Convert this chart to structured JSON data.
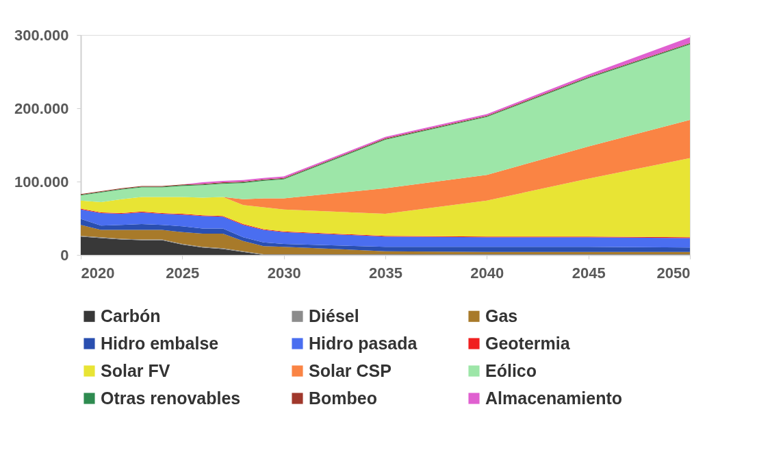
{
  "chart_data": {
    "type": "area",
    "stacked": true,
    "x": [
      2020,
      2021,
      2022,
      2023,
      2024,
      2025,
      2026,
      2027,
      2028,
      2029,
      2030,
      2035,
      2040,
      2045,
      2050
    ],
    "xlim": [
      2020,
      2050
    ],
    "xticks": [
      2020,
      2025,
      2030,
      2035,
      2040,
      2045,
      2050
    ],
    "ylim": [
      0,
      300000
    ],
    "yticks": [
      {
        "value": 0,
        "label": "0"
      },
      {
        "value": 100000,
        "label": "100.000"
      },
      {
        "value": 200000,
        "label": "200.000"
      },
      {
        "value": 300000,
        "label": "300.000"
      }
    ],
    "grid": false,
    "legend": "bottom",
    "series": [
      {
        "name": "Carbón",
        "color": "#383838",
        "values": [
          25000,
          23000,
          21000,
          20000,
          20000,
          14000,
          10000,
          8000,
          4000,
          0,
          0,
          0,
          0,
          0,
          0
        ]
      },
      {
        "name": "Diésel",
        "color": "#8c8c8c",
        "values": [
          1000,
          1000,
          1000,
          1000,
          1000,
          1000,
          1000,
          1000,
          1000,
          1000,
          1000,
          1000,
          1000,
          1000,
          1000
        ]
      },
      {
        "name": "Gas",
        "color": "#a87a2a",
        "values": [
          15000,
          10000,
          12000,
          13000,
          13000,
          16000,
          18000,
          20000,
          14000,
          11000,
          10000,
          4000,
          3000,
          3000,
          3000
        ]
      },
      {
        "name": "Hidro embalse",
        "color": "#2a4fb0",
        "values": [
          8000,
          6000,
          7000,
          8000,
          7000,
          8000,
          7000,
          7000,
          5000,
          5000,
          4000,
          6000,
          7000,
          7000,
          6000
        ]
      },
      {
        "name": "Hidro pasada",
        "color": "#4a6ef0",
        "values": [
          13000,
          17000,
          15000,
          16000,
          15000,
          16000,
          17000,
          16000,
          17000,
          17000,
          16000,
          14000,
          13000,
          13000,
          13000
        ]
      },
      {
        "name": "Geotermia",
        "color": "#f02020",
        "values": [
          1000,
          1000,
          1000,
          1000,
          1000,
          1000,
          1000,
          1000,
          1000,
          1000,
          1000,
          1000,
          1000,
          1000,
          1000
        ]
      },
      {
        "name": "Solar FV",
        "color": "#e8e434",
        "values": [
          11000,
          14000,
          19000,
          20000,
          22000,
          23000,
          24000,
          26000,
          26000,
          30000,
          30000,
          30000,
          49000,
          79000,
          108000
        ]
      },
      {
        "name": "Solar CSP",
        "color": "#fa8444",
        "values": [
          0,
          0,
          0,
          0,
          0,
          0,
          0,
          0,
          8000,
          12000,
          15000,
          35000,
          35000,
          44000,
          52000
        ]
      },
      {
        "name": "Eólico",
        "color": "#9de6a8",
        "values": [
          7000,
          13000,
          13000,
          13000,
          13000,
          15000,
          17000,
          18000,
          22000,
          24000,
          26000,
          66000,
          79000,
          93000,
          103000
        ]
      },
      {
        "name": "Otras renovables",
        "color": "#2e8b50",
        "values": [
          1000,
          1000,
          1000,
          1000,
          1000,
          1000,
          1000,
          1000,
          1000,
          1000,
          1000,
          1000,
          1000,
          1000,
          1000
        ]
      },
      {
        "name": "Bombeo",
        "color": "#a0382c",
        "values": [
          1000,
          1000,
          1000,
          1000,
          1000,
          1000,
          1000,
          1000,
          1000,
          1000,
          1000,
          1000,
          1000,
          1000,
          1000
        ]
      },
      {
        "name": "Almacenamiento",
        "color": "#e060d0",
        "values": [
          0,
          0,
          0,
          0,
          0,
          0,
          2000,
          2000,
          2000,
          2000,
          2000,
          2000,
          2000,
          3000,
          8000
        ]
      }
    ]
  }
}
